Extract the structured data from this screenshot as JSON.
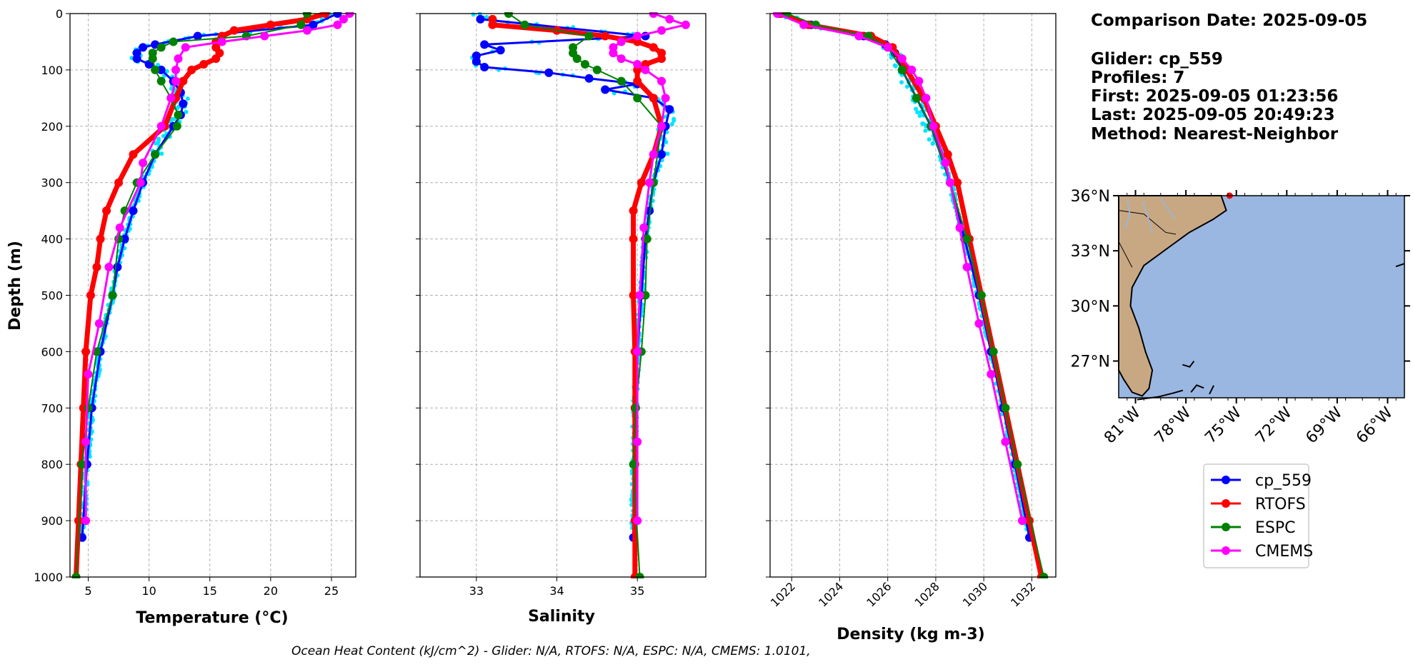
{
  "colors": {
    "glider": "#0000ff",
    "glider_raw": "#00e5ff",
    "rtofs": "#ff0000",
    "espc": "#008000",
    "cmems": "#ff00ff",
    "land": "#c8a882",
    "ocean": "#9ab7e2",
    "grid": "#b0b0b0"
  },
  "info": {
    "line1": "Comparison Date: 2025-09-05",
    "line2": "Glider: cp_559",
    "line3": "Profiles: 7",
    "line4": "First: 2025-09-05 01:23:56",
    "line5": "Last: 2025-09-05 20:49:23",
    "line6": "Method: Nearest-Neighbor"
  },
  "legend": [
    "cp_559",
    "RTOFS",
    "ESPC",
    "CMEMS"
  ],
  "footer": "Ocean Heat Content (kJ/cm^2) - Glider: N/A,  RTOFS: N/A,  ESPC: N/A,  CMEMS: 1.0101,",
  "map": {
    "lat_labels": [
      "36°N",
      "33°N",
      "30°N",
      "27°N"
    ],
    "lon_labels": [
      "81°W",
      "78°W",
      "75°W",
      "72°W",
      "69°W",
      "66°W"
    ],
    "extent": {
      "lon": [
        -82,
        -65
      ],
      "lat": [
        25,
        36
      ]
    }
  },
  "chart_data": [
    {
      "type": "line",
      "xlabel": "Temperature (°C)",
      "ylabel": "Depth (m)",
      "xlim": [
        3.5,
        27
      ],
      "ylim": [
        1000,
        0
      ],
      "x_ticks": [
        5,
        10,
        15,
        20,
        25
      ],
      "y_ticks": [
        0,
        100,
        200,
        300,
        400,
        500,
        600,
        700,
        800,
        900,
        1000
      ],
      "series": [
        {
          "name": "cp_559",
          "depth": [
            0,
            20,
            40,
            55,
            60,
            70,
            80,
            90,
            100,
            120,
            140,
            160,
            180,
            200,
            250,
            300,
            350,
            400,
            450,
            500,
            600,
            700,
            800,
            930
          ],
          "values": [
            25.5,
            23.5,
            14,
            10.5,
            9.5,
            9,
            9,
            10,
            11,
            12,
            12.6,
            12.8,
            12.6,
            12,
            10.5,
            9.5,
            8.7,
            8,
            7.4,
            7,
            6,
            5.3,
            4.9,
            4.5
          ]
        },
        {
          "name": "RTOFS",
          "depth": [
            0,
            10,
            20,
            30,
            40,
            50,
            60,
            70,
            80,
            90,
            100,
            120,
            150,
            200,
            250,
            300,
            350,
            400,
            450,
            500,
            600,
            700,
            800,
            900,
            1000
          ],
          "values": [
            24.5,
            23,
            20,
            17,
            16,
            15.5,
            15.5,
            15.8,
            15.5,
            14.5,
            13.5,
            12.8,
            12.2,
            11.3,
            8.7,
            7.5,
            6.5,
            6,
            5.7,
            5.2,
            4.8,
            4.6,
            4.4,
            4.2,
            4
          ]
        },
        {
          "name": "ESPC",
          "depth": [
            0,
            20,
            40,
            50,
            60,
            70,
            80,
            100,
            120,
            150,
            180,
            200,
            250,
            300,
            350,
            400,
            500,
            600,
            700,
            800,
            1000
          ],
          "values": [
            23,
            22.5,
            18,
            12,
            11,
            10.3,
            10.3,
            10.5,
            11,
            11.8,
            12.4,
            12.3,
            10.5,
            9,
            8,
            7.5,
            7,
            5.7,
            5,
            4.5,
            4
          ]
        },
        {
          "name": "CMEMS",
          "depth": [
            0,
            10,
            20,
            30,
            40,
            50,
            60,
            80,
            100,
            120,
            150,
            200,
            265,
            300,
            380,
            450,
            550,
            640,
            760,
            900
          ],
          "values": [
            26.5,
            26,
            25.5,
            23,
            19.5,
            16,
            13,
            12.4,
            12.2,
            12.2,
            11.8,
            11,
            9.5,
            9.3,
            7.6,
            6.7,
            5.9,
            5,
            4.8,
            4.8
          ]
        }
      ]
    },
    {
      "type": "line",
      "xlabel": "Salinity",
      "xlim": [
        32.3,
        35.85
      ],
      "ylim": [
        1000,
        0
      ],
      "x_ticks": [
        33,
        34,
        35
      ],
      "series": [
        {
          "name": "cp_559",
          "depth": [
            10,
            40,
            55,
            65,
            75,
            85,
            95,
            105,
            115,
            125,
            135,
            150,
            170,
            200,
            250,
            300,
            350,
            400,
            500,
            600,
            700,
            800,
            930
          ],
          "values": [
            33.05,
            35.1,
            33.1,
            33.3,
            33.0,
            33.0,
            33.1,
            33.9,
            34.4,
            35.0,
            34.6,
            35.2,
            35.4,
            35.35,
            35.3,
            35.2,
            35.15,
            35.1,
            35.05,
            35.0,
            34.97,
            34.96,
            34.95
          ]
        },
        {
          "name": "RTOFS",
          "depth": [
            10,
            20,
            30,
            40,
            50,
            60,
            70,
            80,
            90,
            100,
            120,
            150,
            200,
            250,
            300,
            350,
            400,
            500,
            600,
            700,
            800,
            900,
            1000
          ],
          "values": [
            33.2,
            33.2,
            34.0,
            34.6,
            35.0,
            35.2,
            35.3,
            35.3,
            35.1,
            35.0,
            35.0,
            35.2,
            35.3,
            35.2,
            35.05,
            34.95,
            34.95,
            34.95,
            34.97,
            34.97,
            34.97,
            34.97,
            34.97
          ]
        },
        {
          "name": "ESPC",
          "depth": [
            0,
            20,
            40,
            60,
            70,
            80,
            90,
            100,
            120,
            150,
            200,
            300,
            400,
            500,
            600,
            700,
            800,
            1000
          ],
          "values": [
            33.4,
            33.6,
            34.4,
            34.2,
            34.2,
            34.25,
            34.35,
            34.5,
            34.8,
            35.0,
            35.3,
            35.2,
            35.12,
            35.1,
            35.05,
            34.98,
            34.95,
            35.03
          ]
        },
        {
          "name": "CMEMS",
          "depth": [
            0,
            10,
            20,
            30,
            40,
            50,
            60,
            70,
            80,
            90,
            100,
            120,
            150,
            200,
            250,
            300,
            380,
            500,
            600,
            760,
            900
          ],
          "values": [
            35.2,
            35.4,
            35.6,
            35.3,
            35.0,
            34.8,
            34.7,
            34.7,
            34.8,
            35.0,
            35.1,
            35.3,
            35.35,
            35.3,
            35.2,
            35.15,
            35.08,
            35.03,
            35.0,
            35.0,
            35.0
          ]
        }
      ]
    },
    {
      "type": "line",
      "xlabel": "Density (kg m-3)",
      "xlim": [
        1021.1,
        1033.0
      ],
      "ylim": [
        1000,
        0
      ],
      "x_ticks": [
        1022,
        1024,
        1026,
        1028,
        1030,
        1032
      ],
      "series": [
        {
          "name": "cp_559",
          "depth": [
            0,
            20,
            40,
            55,
            70,
            100,
            150,
            200,
            300,
            400,
            500,
            600,
            700,
            800,
            930
          ],
          "values": [
            1021.5,
            1022.8,
            1025.0,
            1025.9,
            1026.3,
            1026.6,
            1027.2,
            1027.8,
            1028.6,
            1029.2,
            1029.8,
            1030.3,
            1030.8,
            1031.3,
            1031.9
          ]
        },
        {
          "name": "RTOFS",
          "depth": [
            0,
            20,
            40,
            60,
            100,
            150,
            200,
            250,
            300,
            400,
            500,
            600,
            700,
            800,
            900,
            1000
          ],
          "values": [
            1021.6,
            1022.7,
            1025.3,
            1026.2,
            1026.8,
            1027.5,
            1028.0,
            1028.5,
            1028.9,
            1029.4,
            1029.9,
            1030.4,
            1030.9,
            1031.4,
            1031.9,
            1032.4
          ]
        },
        {
          "name": "ESPC",
          "depth": [
            0,
            20,
            40,
            60,
            100,
            150,
            200,
            300,
            400,
            500,
            600,
            700,
            800,
            1000
          ],
          "values": [
            1021.8,
            1023.0,
            1025.2,
            1026.0,
            1026.6,
            1027.2,
            1027.8,
            1028.6,
            1029.3,
            1029.9,
            1030.4,
            1030.9,
            1031.4,
            1032.5
          ]
        },
        {
          "name": "CMEMS",
          "depth": [
            0,
            20,
            40,
            60,
            80,
            100,
            120,
            150,
            200,
            265,
            300,
            380,
            450,
            550,
            640,
            760,
            900
          ],
          "values": [
            1021.4,
            1022.5,
            1024.8,
            1026.0,
            1026.6,
            1027.0,
            1027.3,
            1027.6,
            1027.9,
            1028.4,
            1028.6,
            1029.0,
            1029.3,
            1029.8,
            1030.3,
            1030.9,
            1031.6
          ]
        }
      ]
    }
  ]
}
